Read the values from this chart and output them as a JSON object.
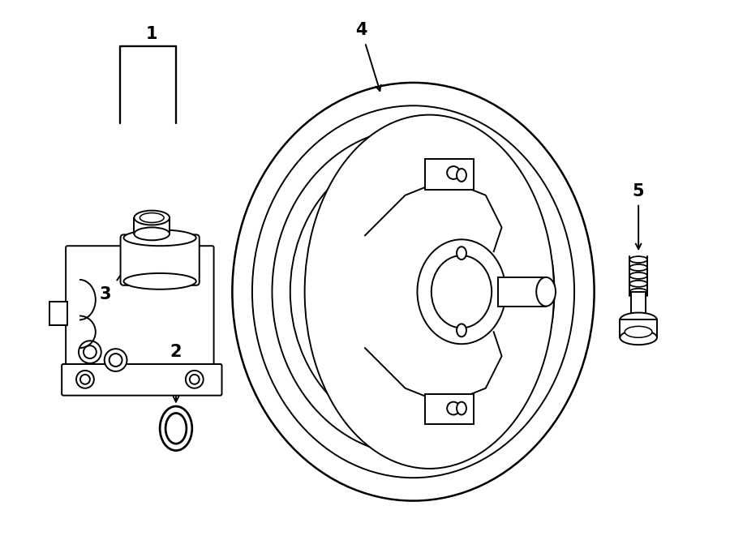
{
  "bg_color": "#ffffff",
  "line_color": "#000000",
  "lw": 1.4,
  "fig_width": 9.0,
  "fig_height": 6.61,
  "label_fontsize": 15
}
